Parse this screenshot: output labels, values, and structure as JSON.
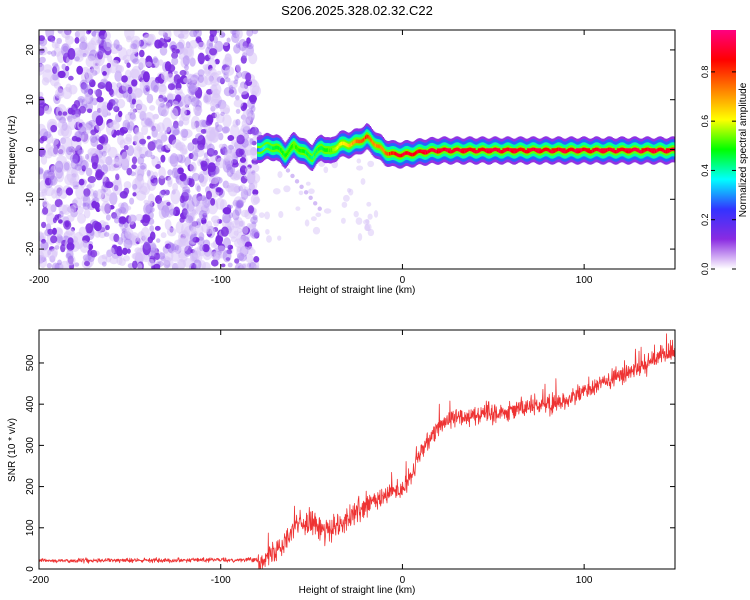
{
  "chart_data": [
    {
      "type": "heatmap",
      "title": "S206.2025.328.02.32.C22",
      "xlabel": "Height of straight line (km)",
      "ylabel": "Frequency (Hz)",
      "xlim": [
        -200,
        150
      ],
      "ylim": [
        -24,
        24
      ],
      "xticks": [
        -200,
        -100,
        0,
        100
      ],
      "xtick_labels": [
        "-200",
        "-100",
        "0",
        "100"
      ],
      "yticks": [
        -20,
        -10,
        0,
        10,
        20
      ],
      "ytick_labels": [
        "-20",
        "-10",
        "0",
        "10",
        "20"
      ],
      "noise_region_x": [
        -200,
        -78
      ],
      "signal_trace": {
        "x": [
          -80,
          -75,
          -70,
          -65,
          -60,
          -55,
          -50,
          -45,
          -40,
          -35,
          -30,
          -25,
          -20,
          -15,
          -10,
          -5,
          0,
          5,
          10,
          20,
          40,
          60,
          80,
          100,
          120,
          150
        ],
        "freq": [
          0,
          0.5,
          0.5,
          -1,
          0.8,
          -0.5,
          -1.5,
          0.5,
          -0.5,
          1,
          1,
          1.5,
          2.5,
          1,
          -0.5,
          -1,
          -1,
          -0.8,
          -0.5,
          -0.2,
          -0.2,
          -0.2,
          -0.2,
          -0.2,
          -0.2,
          -0.2
        ],
        "amplitude": [
          0.3,
          0.45,
          0.5,
          0.5,
          0.55,
          0.5,
          0.45,
          0.5,
          0.55,
          0.65,
          0.7,
          0.8,
          0.85,
          0.75,
          0.8,
          0.9,
          0.95,
          0.95,
          0.95,
          0.95,
          0.95,
          0.95,
          0.95,
          0.95,
          0.95,
          0.95
        ]
      },
      "colorbar": {
        "label": "Normalized spectral amplitude",
        "range": [
          0,
          0.97
        ],
        "ticks": [
          0.0,
          0.2,
          0.4,
          0.6,
          0.8
        ],
        "tick_labels": [
          "0.0",
          "0.2",
          "0.4",
          "0.6",
          "0.8"
        ],
        "colormap": [
          "#ffffff",
          "#8a2be2",
          "#3333ff",
          "#00ffff",
          "#00ff00",
          "#ffff00",
          "#ff8000",
          "#ff0000",
          "#ff0080"
        ]
      }
    },
    {
      "type": "line",
      "xlabel": "Height of straight line (km)",
      "ylabel": "SNR (10 * v/v)",
      "xlim": [
        -200,
        150
      ],
      "ylim": [
        0,
        580
      ],
      "xticks": [
        -200,
        -100,
        0,
        100
      ],
      "xtick_labels": [
        "-200",
        "-100",
        "0",
        "100"
      ],
      "yticks": [
        0,
        100,
        200,
        300,
        400,
        500
      ],
      "ytick_labels": [
        "0",
        "100",
        "200",
        "300",
        "400",
        "500"
      ],
      "color": "#ee3333",
      "series": [
        {
          "name": "SNR",
          "x": [
            -200,
            -180,
            -160,
            -140,
            -120,
            -100,
            -90,
            -80,
            -75,
            -70,
            -65,
            -60,
            -55,
            -50,
            -45,
            -40,
            -35,
            -30,
            -25,
            -20,
            -15,
            -10,
            -5,
            0,
            5,
            10,
            15,
            20,
            25,
            30,
            40,
            50,
            60,
            70,
            80,
            90,
            100,
            110,
            120,
            130,
            140,
            150
          ],
          "values": [
            20,
            20,
            21,
            21,
            22,
            22,
            22,
            23,
            25,
            45,
            70,
            100,
            110,
            120,
            95,
            90,
            105,
            120,
            140,
            150,
            165,
            175,
            190,
            190,
            230,
            280,
            320,
            350,
            360,
            370,
            375,
            380,
            385,
            395,
            400,
            410,
            430,
            450,
            470,
            490,
            510,
            530
          ]
        }
      ],
      "noise_amplitude": [
        {
          "x_from": -200,
          "x_to": -80,
          "amp": 8
        },
        {
          "x_from": -80,
          "x_to": -10,
          "amp": 45
        },
        {
          "x_from": -10,
          "x_to": 150,
          "amp": 35
        }
      ]
    }
  ]
}
